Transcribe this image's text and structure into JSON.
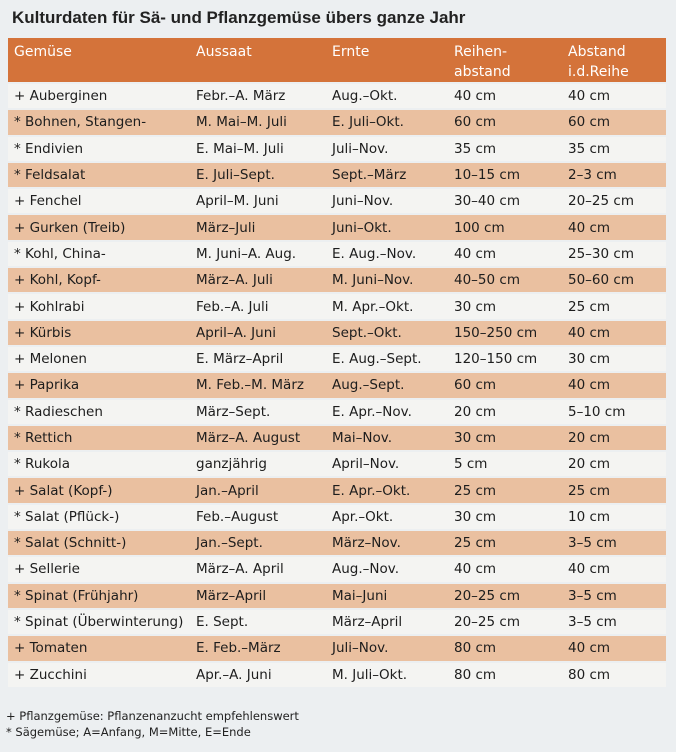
{
  "title": "Kulturdaten für Sä- und Pflanzgemüse übers ganze Jahr",
  "columns": [
    "Gemüse",
    "Aussaat",
    "Ernte",
    "Reihen-\nabstand",
    "Abstand\ni.d.Reihe"
  ],
  "rows": [
    [
      "+ Auberginen",
      "Febr.–A. März",
      "Aug.–Okt.",
      "40 cm",
      "40 cm"
    ],
    [
      "* Bohnen, Stangen-",
      "M. Mai–M. Juli",
      "E. Juli–Okt.",
      "60 cm",
      "60 cm"
    ],
    [
      "* Endivien",
      "E. Mai–M. Juli",
      "Juli–Nov.",
      "35 cm",
      "35 cm"
    ],
    [
      "* Feldsalat",
      "E. Juli–Sept.",
      "Sept.–März",
      "10–15 cm",
      "2–3 cm"
    ],
    [
      "+ Fenchel",
      "April–M. Juni",
      "Juni–Nov.",
      "30–40 cm",
      "20–25 cm"
    ],
    [
      "+ Gurken (Treib)",
      "März–Juli",
      "Juni–Okt.",
      "100 cm",
      "40 cm"
    ],
    [
      "* Kohl, China-",
      "M. Juni–A. Aug.",
      "E. Aug.–Nov.",
      "40 cm",
      "25–30 cm"
    ],
    [
      "+ Kohl, Kopf-",
      "März–A. Juli",
      "M. Juni–Nov.",
      "40–50 cm",
      "50–60 cm"
    ],
    [
      "+ Kohlrabi",
      "Feb.–A. Juli",
      "M. Apr.–Okt.",
      "30 cm",
      "25 cm"
    ],
    [
      "+ Kürbis",
      "April–A. Juni",
      "Sept.–Okt.",
      "150–250 cm",
      "40 cm"
    ],
    [
      "+ Melonen",
      "E. März–April",
      "E. Aug.–Sept.",
      "120–150 cm",
      "30 cm"
    ],
    [
      "+ Paprika",
      "M. Feb.–M. März",
      "Aug.–Sept.",
      "60 cm",
      "40 cm"
    ],
    [
      "* Radieschen",
      "März–Sept.",
      "E. Apr.–Nov.",
      "20 cm",
      "5–10 cm"
    ],
    [
      "* Rettich",
      "März–A. August",
      "Mai–Nov.",
      "30 cm",
      "20 cm"
    ],
    [
      "* Rukola",
      "ganzjährig",
      "April–Nov.",
      "5 cm",
      "20 cm"
    ],
    [
      "+ Salat (Kopf-)",
      "Jan.–April",
      "E. Apr.–Okt.",
      "25 cm",
      "25 cm"
    ],
    [
      "* Salat (Pflück-)",
      "Feb.–August",
      "Apr.–Okt.",
      "30 cm",
      "10 cm"
    ],
    [
      "* Salat (Schnitt-)",
      "Jan.–Sept.",
      "März–Nov.",
      "25 cm",
      "3–5 cm"
    ],
    [
      "+ Sellerie",
      "März–A. April",
      "Aug.–Nov.",
      "40 cm",
      "40 cm"
    ],
    [
      "* Spinat (Frühjahr)",
      "März–April",
      "Mai–Juni",
      "20–25 cm",
      "3–5 cm"
    ],
    [
      "* Spinat (Überwinterung)",
      "E. Sept.",
      "März–April",
      "20–25 cm",
      "3–5 cm"
    ],
    [
      "+ Tomaten",
      "E. Feb.–März",
      "Juli–Nov.",
      "80 cm",
      "40 cm"
    ],
    [
      "+ Zucchini",
      "Apr.–A. Juni",
      "M. Juli–Okt.",
      "80 cm",
      "80 cm"
    ]
  ],
  "footer": [
    "+ Pflanzgemüse: Pflanzenanzucht empfehlenswert",
    "* Sägemüse; A=Anfang, M=Mitte, E=Ende"
  ],
  "colors": {
    "header": "#d4733a",
    "row_light": "#f4f4f2",
    "row_dark": "#eac0a0"
  }
}
